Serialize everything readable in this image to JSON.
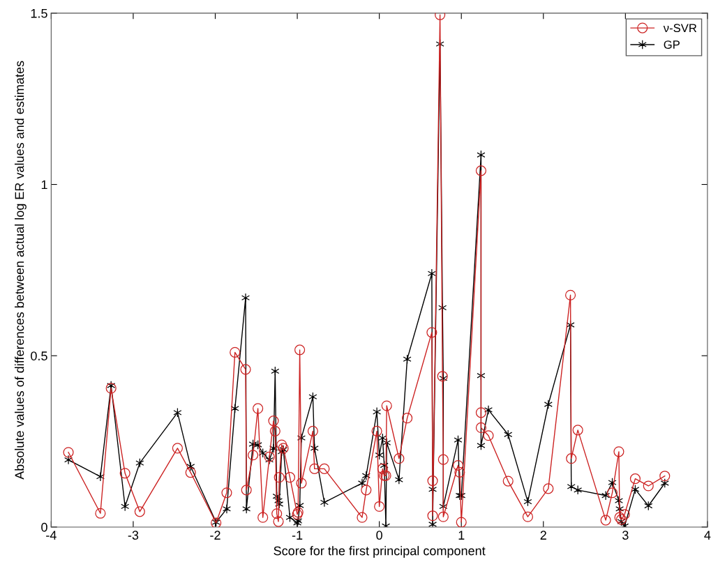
{
  "chart_data": {
    "type": "line",
    "xlabel": "Score for the first principal component",
    "ylabel": "Absolute values of differences between actual log ER values and estimates",
    "x": [
      -3.79,
      -3.4,
      -3.27,
      -3.1,
      -2.92,
      -2.46,
      -2.3,
      -1.99,
      -1.86,
      -1.76,
      -1.63,
      -1.62,
      -1.54,
      -1.48,
      -1.42,
      -1.34,
      -1.29,
      -1.27,
      -1.25,
      -1.23,
      -1.22,
      -1.19,
      -1.17,
      -1.09,
      -1.0,
      -0.99,
      -0.97,
      -0.95,
      -0.81,
      -0.79,
      -0.67,
      -0.21,
      -0.16,
      -0.03,
      0.0,
      0.04,
      0.06,
      0.08,
      0.09,
      0.24,
      0.34,
      0.64,
      0.65,
      0.65,
      0.74,
      0.77,
      0.78,
      0.78,
      0.96,
      0.98,
      1.0,
      1.24,
      1.24,
      1.24,
      1.33,
      1.57,
      1.81,
      2.06,
      2.33,
      2.34,
      2.42,
      2.76,
      2.84,
      2.92,
      2.93,
      2.95,
      2.99,
      3.12,
      3.28,
      3.48
    ],
    "series": [
      {
        "name": "ν-SVR",
        "color": "#cc2222",
        "marker": "circle",
        "values": [
          0.218,
          0.04,
          0.405,
          0.157,
          0.045,
          0.23,
          0.159,
          0.012,
          0.1,
          0.51,
          0.46,
          0.108,
          0.21,
          0.346,
          0.028,
          0.205,
          0.31,
          0.28,
          0.039,
          0.016,
          0.145,
          0.24,
          0.23,
          0.145,
          0.037,
          0.043,
          0.517,
          0.128,
          0.28,
          0.17,
          0.17,
          0.028,
          0.108,
          0.28,
          0.06,
          0.17,
          0.15,
          0.15,
          0.354,
          0.2,
          0.318,
          0.568,
          0.135,
          0.033,
          1.495,
          0.44,
          0.197,
          0.03,
          0.18,
          0.16,
          0.014,
          1.04,
          0.334,
          0.29,
          0.267,
          0.134,
          0.03,
          0.112,
          0.677,
          0.2,
          0.283,
          0.02,
          0.1,
          0.22,
          0.028,
          0.022,
          0.037,
          0.141,
          0.12,
          0.149
        ]
      },
      {
        "name": "GP",
        "color": "#000000",
        "marker": "cross",
        "values": [
          0.196,
          0.147,
          0.413,
          0.06,
          0.187,
          0.334,
          0.177,
          0.014,
          0.053,
          0.346,
          0.669,
          0.053,
          0.242,
          0.24,
          0.216,
          0.196,
          0.23,
          0.455,
          0.09,
          0.077,
          0.067,
          0.22,
          0.226,
          0.028,
          0.012,
          0.018,
          0.063,
          0.26,
          0.38,
          0.23,
          0.072,
          0.128,
          0.15,
          0.336,
          0.21,
          0.26,
          0.18,
          0.003,
          0.246,
          0.138,
          0.49,
          0.74,
          0.11,
          0.008,
          1.41,
          0.64,
          0.434,
          0.06,
          0.254,
          0.092,
          0.092,
          1.086,
          0.442,
          0.238,
          0.342,
          0.27,
          0.074,
          0.358,
          0.59,
          0.118,
          0.108,
          0.092,
          0.13,
          0.077,
          0.053,
          0.016,
          0.003,
          0.11,
          0.062,
          0.128
        ]
      }
    ],
    "xlim": [
      -4,
      4
    ],
    "xticks": [
      -4,
      -3,
      -2,
      -1,
      0,
      1,
      2,
      3,
      4
    ],
    "ylim": [
      0,
      1.5
    ],
    "yticks": [
      0,
      0.5,
      1,
      1.5
    ],
    "grid": false,
    "legend": "top right",
    "line_style": "solid"
  }
}
